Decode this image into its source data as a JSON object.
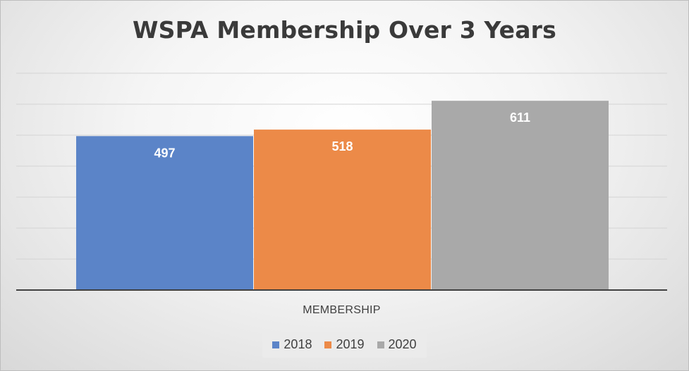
{
  "chart_data": {
    "type": "bar",
    "title": "WSPA Membership Over 3 Years",
    "categories": [
      "MEMBERSHIP"
    ],
    "series": [
      {
        "name": "2018",
        "values": [
          497
        ],
        "color": "#5b84c8"
      },
      {
        "name": "2019",
        "values": [
          518
        ],
        "color": "#ec8a48"
      },
      {
        "name": "2020",
        "values": [
          611
        ],
        "color": "#a9a9a9"
      }
    ],
    "ylim": [
      0,
      700
    ],
    "grid": true,
    "data_labels": true,
    "legend_position": "bottom"
  }
}
